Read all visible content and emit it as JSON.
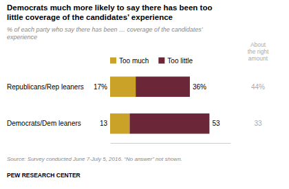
{
  "chart_data": {
    "type": "bar",
    "orientation": "horizontal",
    "stacked": true,
    "data_labels": true,
    "tick_labels": false,
    "legend": "top",
    "title": "Democrats much more likely to say there has been too\nlittle coverage of the candidates’ experience",
    "subtitle": "% of each party who say there has been … coverage of the candidates’\nexperience",
    "categories": [
      "Republicans/Rep leaners",
      "Democrats/Dem leaners"
    ],
    "series": [
      {
        "name": "Too much",
        "color": "#C9A227",
        "values": [
          17,
          13
        ],
        "value_labels": [
          "17%",
          "13"
        ]
      },
      {
        "name": "Too little",
        "color": "#6B2737",
        "values": [
          36,
          53
        ],
        "value_labels": [
          "36%",
          "53"
        ]
      }
    ],
    "about_right": {
      "name": "About\nthe right\namount",
      "color": "#AAAAAA",
      "values": [
        44,
        33
      ],
      "value_labels": [
        "44%",
        "33"
      ]
    },
    "xlim": [
      0,
      80
    ],
    "source": "Source: Survey conducted June 7-July 5, 2016. “No answer” not shown.",
    "brand": "PEW RESEARCH CENTER"
  }
}
